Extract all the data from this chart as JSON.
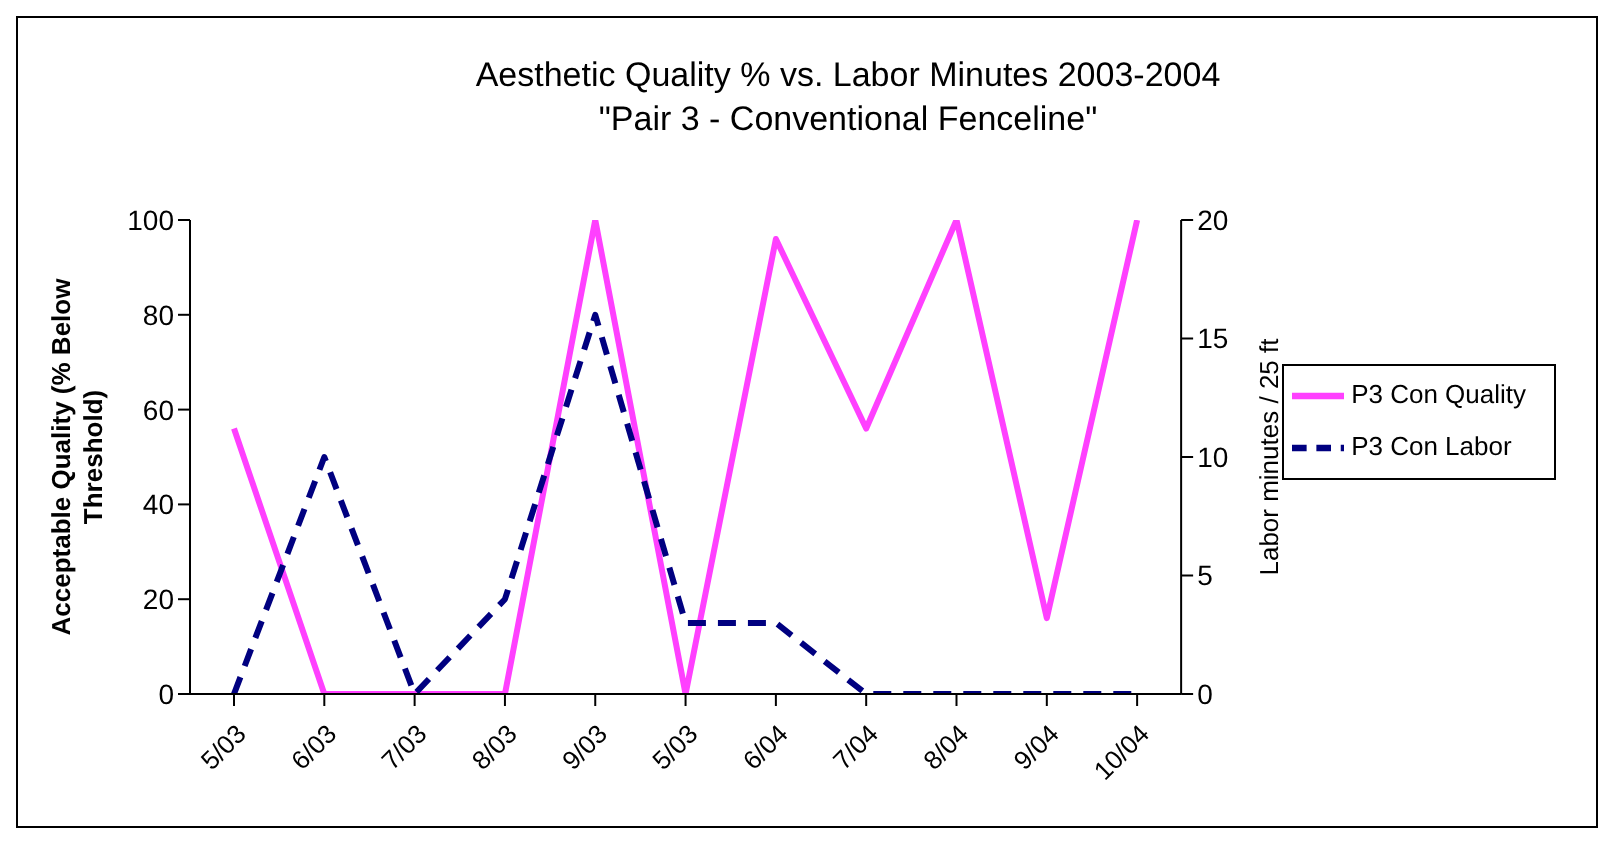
{
  "chart_data": {
    "type": "line",
    "title": "Aesthetic Quality % vs. Labor Minutes 2003-2004",
    "subtitle": "\"Pair 3 - Conventional Fenceline\"",
    "ylabel": "Acceptable Quality (% Below Threshold)",
    "y2label": "Labor minutes / 25 ft",
    "categories": [
      "5/03",
      "6/03",
      "7/03",
      "8/03",
      "9/03",
      "5/03",
      "6/04",
      "7/04",
      "8/04",
      "9/04",
      "10/04"
    ],
    "series": [
      {
        "name": "P3 Con Quality",
        "color": "#ff40ff",
        "values": [
          56,
          0,
          0,
          0,
          100,
          0,
          96,
          56,
          100,
          16,
          100
        ],
        "line_style": "solid"
      },
      {
        "name": "P3 Con Labor",
        "color": "#000080",
        "axis": "y2",
        "values": [
          0,
          10,
          0,
          4,
          16,
          3,
          3,
          0,
          0,
          0,
          0
        ],
        "line_style": "dashed"
      }
    ],
    "ylim": [
      0,
      100
    ],
    "yticks": [
      0,
      20,
      40,
      60,
      80,
      100
    ],
    "y2lim": [
      0,
      20
    ],
    "y2ticks": [
      0,
      5,
      10,
      15,
      20
    ],
    "grid": false,
    "legend": "right",
    "marker": "none"
  }
}
